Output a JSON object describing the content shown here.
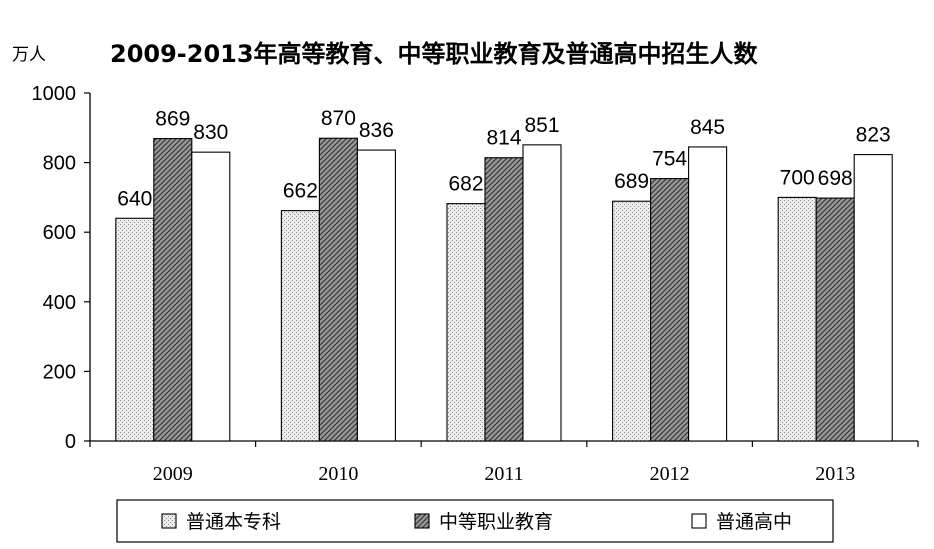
{
  "chart_data": {
    "type": "bar",
    "title": "2009-2013年高等教育、中等职业教育及普通高中招生人数",
    "ylabel": "万人",
    "xlabel": "",
    "categories": [
      "2009",
      "2010",
      "2011",
      "2012",
      "2013"
    ],
    "series": [
      {
        "name": "普通本专科",
        "values": [
          640,
          662,
          682,
          689,
          700
        ],
        "pattern": "dotted-light",
        "color": "#d8d8d8"
      },
      {
        "name": "中等职业教育",
        "values": [
          869,
          870,
          814,
          754,
          698
        ],
        "pattern": "diagonal-dark",
        "color": "#8a8a8a"
      },
      {
        "name": "普通高中",
        "values": [
          830,
          836,
          851,
          845,
          823
        ],
        "pattern": "solid-white",
        "color": "#ffffff"
      }
    ],
    "ylim": [
      0,
      1000
    ],
    "yticks": [
      "0",
      "200",
      "400",
      "600",
      "800",
      "1000"
    ],
    "grid": false,
    "legend_position": "bottom"
  }
}
